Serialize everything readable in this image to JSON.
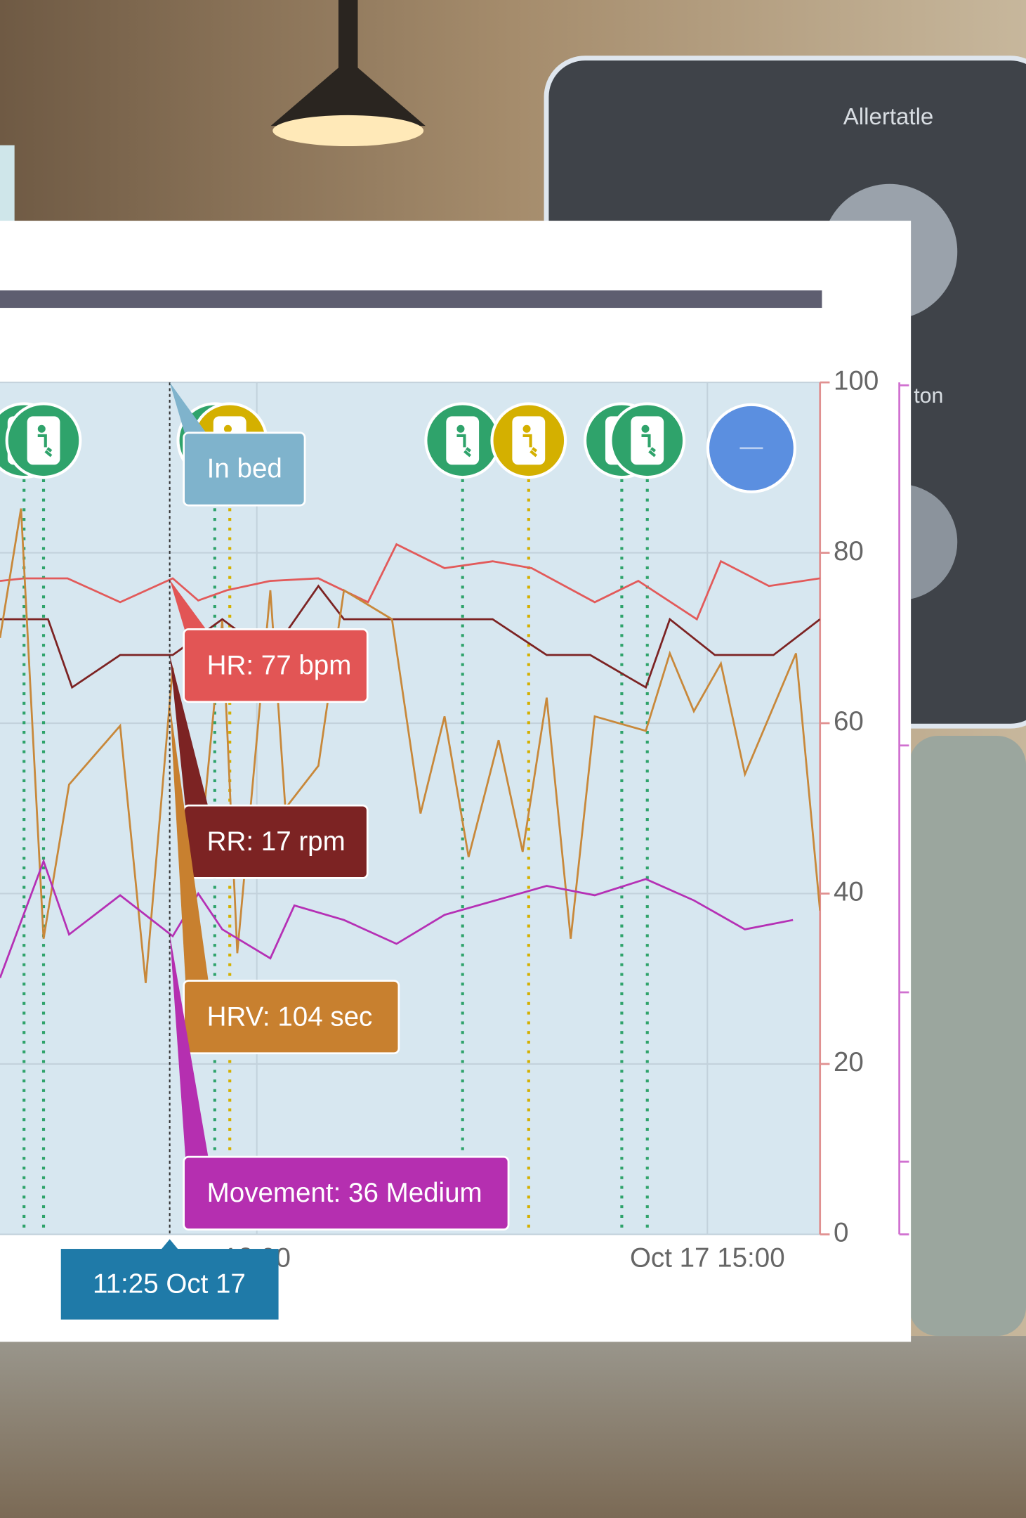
{
  "photo_texts": [
    "Allertatle",
    "ton"
  ],
  "chart_data": {
    "type": "line",
    "xlim": [
      10.29,
      15.75
    ],
    "xticks": [
      {
        "value": 12,
        "label": "12:00"
      },
      {
        "value": 15,
        "label": "Oct 17 15:00"
      }
    ],
    "ylim": [
      0,
      100
    ],
    "yticks": [
      0,
      20,
      40,
      60,
      80,
      100
    ],
    "grid": true,
    "series": [
      {
        "color": "#e25a5a",
        "x": [
          10.29,
          10.45,
          10.74,
          11.09,
          11.44,
          11.61,
          11.8,
          12.09,
          12.41,
          12.74,
          12.93,
          13.25,
          13.57,
          13.83,
          14.25,
          14.54,
          14.93,
          15.09,
          15.41,
          15.75
        ],
        "values": [
          76.7,
          77,
          77,
          74.2,
          77,
          74.4,
          75.6,
          76.7,
          77,
          74.2,
          81,
          78.2,
          79,
          78.2,
          74.2,
          76.7,
          72.2,
          79,
          76.1,
          77
        ]
      },
      {
        "color": "#7c2323",
        "x": [
          10.29,
          10.61,
          10.77,
          11.09,
          11.44,
          11.77,
          12.09,
          12.41,
          12.58,
          12.9,
          13.57,
          13.93,
          14.22,
          14.59,
          14.75,
          15.05,
          15.44,
          15.75
        ],
        "values": [
          72.2,
          72.2,
          64.2,
          68,
          68,
          72.2,
          68,
          76.1,
          72.2,
          72.2,
          72.2,
          68,
          68,
          64.2,
          72.2,
          68,
          68,
          72.2
        ]
      },
      {
        "color": "#c8883a",
        "x": [
          10.29,
          10.43,
          10.58,
          10.75,
          11.09,
          11.26,
          11.44,
          11.61,
          11.77,
          11.87,
          12.09,
          12.19,
          12.41,
          12.58,
          12.9,
          13.09,
          13.25,
          13.41,
          13.61,
          13.77,
          13.93,
          14.09,
          14.25,
          14.59,
          14.75,
          14.91,
          15.09,
          15.25,
          15.59,
          15.75
        ],
        "values": [
          70,
          85.2,
          34.7,
          52.8,
          59.7,
          29.5,
          66.5,
          42.6,
          72,
          33,
          75.6,
          50,
          55,
          75.6,
          72.2,
          49.4,
          60.8,
          44.3,
          58,
          44.9,
          63,
          34.7,
          60.8,
          59.1,
          68.2,
          61.4,
          67,
          54,
          68.2,
          38
        ]
      },
      {
        "color": "#b530b5",
        "x": [
          10.29,
          10.58,
          10.75,
          11.09,
          11.44,
          11.61,
          11.77,
          12.09,
          12.25,
          12.58,
          12.93,
          13.25,
          13.93,
          14.25,
          14.59,
          14.91,
          15.25,
          15.57
        ],
        "values": [
          30.1,
          43.8,
          35.2,
          39.8,
          35,
          40,
          35.8,
          32.4,
          38.6,
          36.9,
          34.1,
          37.5,
          40.9,
          39.8,
          41.7,
          39.2,
          35.8,
          36.9
        ]
      }
    ],
    "events": [
      {
        "x": 10.45,
        "color": "#2fa36b"
      },
      {
        "x": 10.58,
        "color": "#2fa36b"
      },
      {
        "x": 11.72,
        "color": "#2fa36b"
      },
      {
        "x": 11.82,
        "color": "#d4b000"
      },
      {
        "x": 13.37,
        "color": "#2fa36b"
      },
      {
        "x": 13.81,
        "color": "#d4b000"
      },
      {
        "x": 14.43,
        "color": "#2fa36b"
      },
      {
        "x": 14.6,
        "color": "#2fa36b"
      }
    ],
    "cursor": {
      "x": 11.42,
      "label": "11:25 Oct 17",
      "color": "#1f7aa8"
    },
    "tooltips": [
      {
        "text": "In bed",
        "color": "#7fb3cc"
      },
      {
        "text": "HR: 77 bpm",
        "color": "#e25555"
      },
      {
        "text": "RR: 17 rpm",
        "color": "#7c2323"
      },
      {
        "text": "HRV: 104 sec",
        "color": "#c8802f"
      },
      {
        "text": "Movement: 36 Medium",
        "color": "#b52fb0"
      }
    ]
  }
}
